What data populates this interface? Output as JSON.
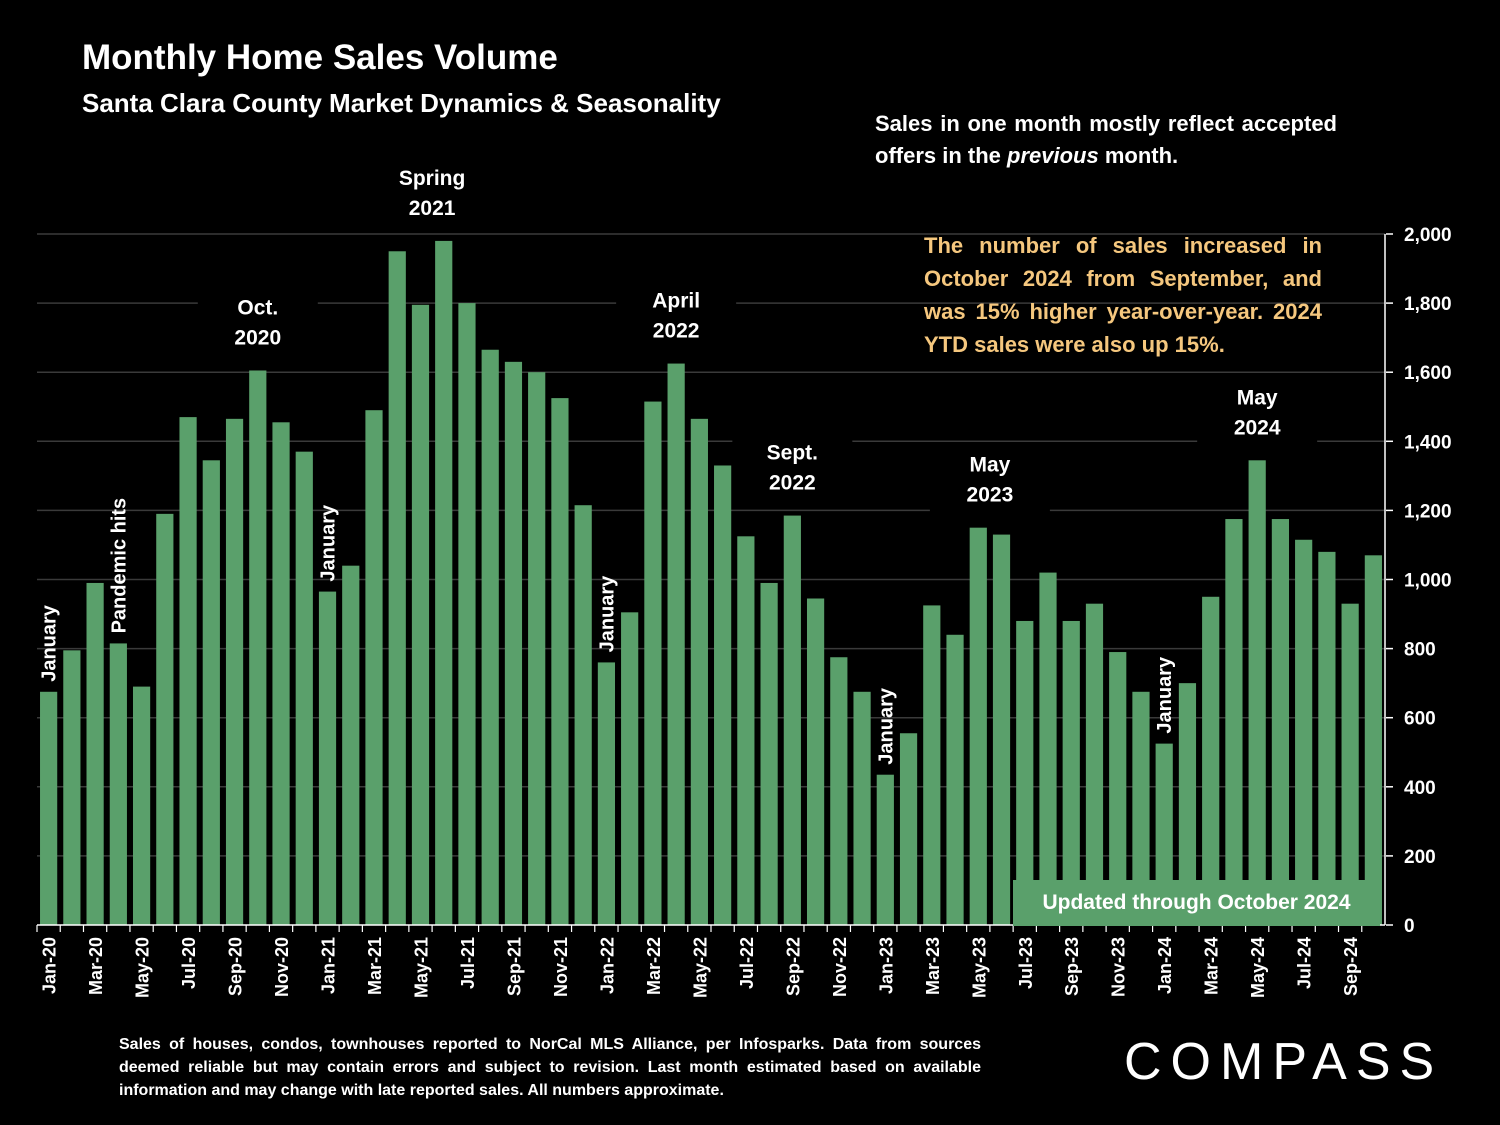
{
  "header": {
    "title": "Monthly Home Sales Volume",
    "subtitle": "Santa Clara County Market Dynamics & Seasonality"
  },
  "notes": {
    "top_before": "Sales in one month mostly reflect accepted offers in the ",
    "top_italic": "previous",
    "top_after": " month.",
    "highlight": "The number of sales increased in October 2024 from September, and was 15% higher year-over-year. 2024 YTD sales were also up 15%.",
    "updated": "Updated through October 2024",
    "footnote": "Sales of houses, condos, townhouses reported to NorCal MLS Alliance, per Infosparks. Data from sources deemed reliable but may contain errors and subject to revision. Last month estimated based on available information and may change with late reported sales. All numbers approximate."
  },
  "logo": {
    "text": "COMPASS"
  },
  "colors": {
    "bar": "#5aa06b",
    "highlight": "#f5c77e",
    "background": "#000000",
    "grid": "#3a3a3a"
  },
  "chart_data": {
    "type": "bar",
    "ylim": [
      0,
      2000
    ],
    "yticks": [
      "0",
      "200",
      "400",
      "600",
      "800",
      "1,000",
      "1,200",
      "1,400",
      "1,600",
      "1,800",
      "2,000"
    ],
    "grid": true,
    "categories": [
      "Jan-20",
      "Feb-20",
      "Mar-20",
      "Apr-20",
      "May-20",
      "Jun-20",
      "Jul-20",
      "Aug-20",
      "Sep-20",
      "Oct-20",
      "Nov-20",
      "Dec-20",
      "Jan-21",
      "Feb-21",
      "Mar-21",
      "Apr-21",
      "May-21",
      "Jun-21",
      "Jul-21",
      "Aug-21",
      "Sep-21",
      "Oct-21",
      "Nov-21",
      "Dec-21",
      "Jan-22",
      "Feb-22",
      "Mar-22",
      "Apr-22",
      "May-22",
      "Jun-22",
      "Jul-22",
      "Aug-22",
      "Sep-22",
      "Oct-22",
      "Nov-22",
      "Dec-22",
      "Jan-23",
      "Feb-23",
      "Mar-23",
      "Apr-23",
      "May-23",
      "Jun-23",
      "Jul-23",
      "Aug-23",
      "Sep-23",
      "Oct-23",
      "Nov-23",
      "Dec-23",
      "Jan-24",
      "Feb-24",
      "Mar-24",
      "Apr-24",
      "May-24",
      "Jun-24",
      "Jul-24",
      "Aug-24",
      "Sep-24",
      "Oct-24"
    ],
    "tick_labels": [
      "Jan-20",
      "",
      "Mar-20",
      "",
      "May-20",
      "",
      "Jul-20",
      "",
      "Sep-20",
      "",
      "Nov-20",
      "",
      "Jan-21",
      "",
      "Mar-21",
      "",
      "May-21",
      "",
      "Jul-21",
      "",
      "Sep-21",
      "",
      "Nov-21",
      "",
      "Jan-22",
      "",
      "Mar-22",
      "",
      "May-22",
      "",
      "Jul-22",
      "",
      "Sep-22",
      "",
      "Nov-22",
      "",
      "Jan-23",
      "",
      "Mar-23",
      "",
      "May-23",
      "",
      "Jul-23",
      "",
      "Sep-23",
      "",
      "Nov-23",
      "",
      "Jan-24",
      "",
      "Mar-24",
      "",
      "May-24",
      "",
      "Jul-24",
      "",
      "Sep-24",
      ""
    ],
    "values": [
      675,
      795,
      990,
      815,
      690,
      1190,
      1470,
      1345,
      1465,
      1605,
      1455,
      1370,
      965,
      1040,
      1490,
      1950,
      1795,
      1980,
      1800,
      1665,
      1630,
      1600,
      1525,
      1215,
      760,
      905,
      1515,
      1625,
      1465,
      1330,
      1125,
      990,
      1185,
      945,
      775,
      675,
      435,
      555,
      925,
      840,
      1150,
      1130,
      880,
      1020,
      880,
      930,
      790,
      675,
      525,
      700,
      950,
      1175,
      1345,
      1175,
      1115,
      1080,
      930,
      1070
    ],
    "annotations": [
      {
        "text": "January",
        "index": 0,
        "rotated": true
      },
      {
        "text": "Pandemic hits",
        "index": 3,
        "rotated": true
      },
      {
        "text": "Oct.|2020",
        "index": 9,
        "rotated": false
      },
      {
        "text": "January",
        "index": 12,
        "rotated": true
      },
      {
        "text": "Spring|2021",
        "index": 16.5,
        "rotated": false
      },
      {
        "text": "January",
        "index": 24,
        "rotated": true
      },
      {
        "text": "April|2022",
        "index": 27,
        "rotated": false
      },
      {
        "text": "Sept.|2022",
        "index": 32,
        "rotated": false
      },
      {
        "text": "January",
        "index": 36,
        "rotated": true
      },
      {
        "text": "May|2023",
        "index": 40.5,
        "rotated": false
      },
      {
        "text": "January",
        "index": 48,
        "rotated": true
      },
      {
        "text": "May|2024",
        "index": 52,
        "rotated": false
      }
    ]
  }
}
